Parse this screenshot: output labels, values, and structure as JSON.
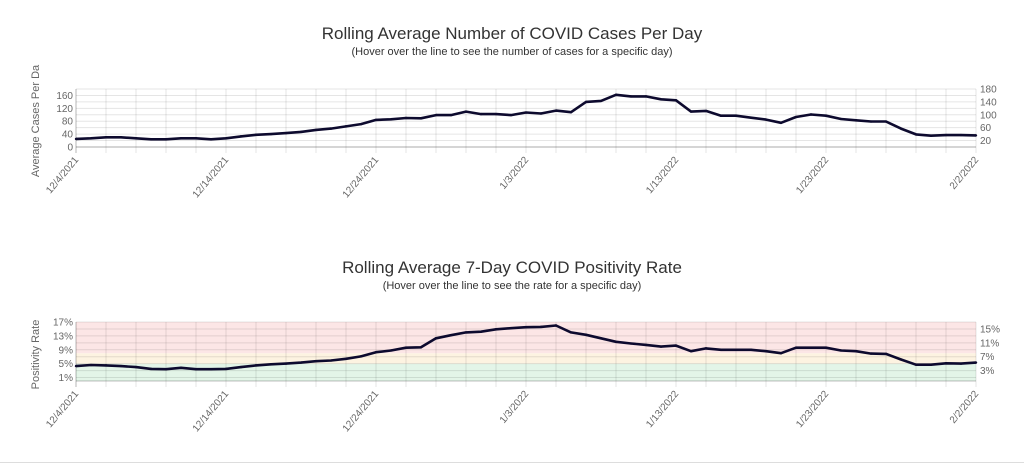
{
  "chart_data": [
    {
      "type": "line",
      "title": "Rolling Average Number of COVID Cases Per Day",
      "subtitle": "(Hover over the line to see the number of cases for a specific day)",
      "ylabel": "Average Cases Per Da",
      "xlabel": "",
      "ylim": [
        0,
        180
      ],
      "yticks": [
        "0",
        "20",
        "40",
        "60",
        "80",
        "100",
        "120",
        "140",
        "160",
        "180"
      ],
      "xtick_labels": [
        "12/4/2021",
        "12/14/2021",
        "12/24/2021",
        "1/3/2022",
        "1/13/2022",
        "1/23/2022",
        "2/2/2022"
      ],
      "grid": true,
      "line_color": "#0d0a2e",
      "values": [
        25,
        27,
        30,
        30,
        27,
        24,
        24,
        27,
        27,
        24,
        27,
        33,
        38,
        40,
        43,
        47,
        53,
        57,
        64,
        71,
        84,
        86,
        90,
        89,
        99,
        99,
        110,
        102,
        102,
        99,
        107,
        104,
        113,
        108,
        140,
        143,
        162,
        157,
        157,
        148,
        145,
        110,
        112,
        97,
        97,
        91,
        85,
        75,
        93,
        101,
        97,
        87,
        83,
        79,
        79,
        57,
        39,
        35,
        37,
        37,
        36
      ]
    },
    {
      "type": "line",
      "title": "Rolling Average 7-Day COVID Positivity Rate",
      "subtitle": "(Hover over the line to see the rate for a specific day)",
      "ylabel": "Positivity Rate",
      "xlabel": "",
      "ylim": [
        0,
        17
      ],
      "yticks": [
        "1%",
        "3%",
        "5%",
        "7%",
        "9%",
        "11%",
        "13%",
        "15%",
        "17%"
      ],
      "xtick_labels": [
        "12/4/2021",
        "12/14/2021",
        "12/24/2021",
        "1/3/2022",
        "1/13/2022",
        "1/23/2022",
        "2/2/2022"
      ],
      "grid": true,
      "line_color": "#0d0a2e",
      "bands": [
        {
          "from": 0,
          "to": 5,
          "color": "#e3f5e8"
        },
        {
          "from": 5,
          "to": 8,
          "color": "#fdf3e1"
        },
        {
          "from": 8,
          "to": 17,
          "color": "#fce6e6"
        }
      ],
      "values": [
        4.3,
        4.6,
        4.5,
        4.3,
        4.0,
        3.5,
        3.4,
        3.8,
        3.4,
        3.4,
        3.5,
        4.0,
        4.5,
        4.8,
        5.0,
        5.3,
        5.7,
        5.9,
        6.4,
        7.1,
        8.3,
        8.8,
        9.6,
        9.7,
        12.3,
        13.2,
        14.0,
        14.2,
        14.9,
        15.2,
        15.5,
        15.6,
        16.0,
        14.0,
        13.3,
        12.3,
        11.3,
        10.8,
        10.4,
        9.9,
        10.2,
        8.6,
        9.4,
        9.0,
        9.0,
        9.0,
        8.6,
        8.0,
        9.6,
        9.6,
        9.6,
        8.8,
        8.6,
        7.9,
        7.8,
        6.2,
        4.7,
        4.7,
        5.1,
        5.0,
        5.3
      ]
    }
  ]
}
